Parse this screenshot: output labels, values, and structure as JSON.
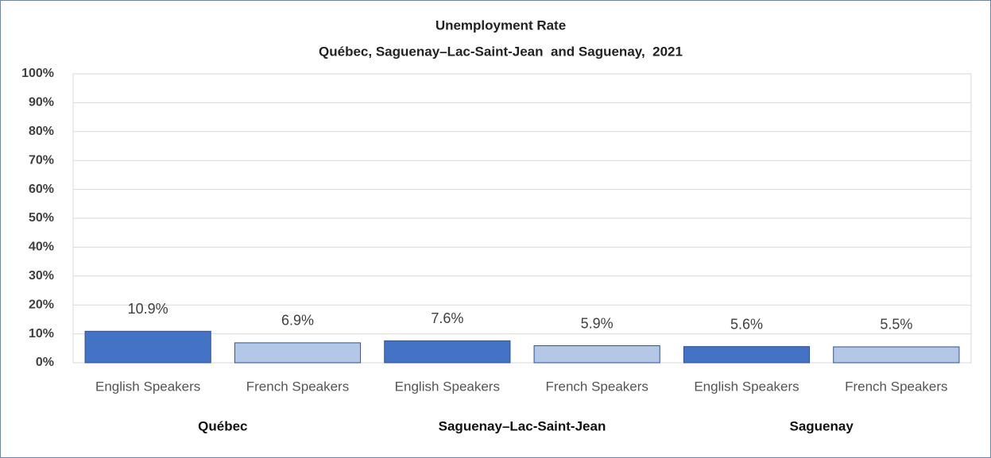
{
  "chart_data": {
    "type": "bar",
    "title": "Unemployment Rate",
    "subtitle": "Québec, Saguenay–Lac-Saint-Jean  and Saguenay,  2021",
    "categories": [
      "English Speakers",
      "French Speakers",
      "English Speakers",
      "French Speakers",
      "English Speakers",
      "French Speakers"
    ],
    "groups": [
      {
        "name": "Québec",
        "size": 2
      },
      {
        "name": "Saguenay–Lac-Saint-Jean",
        "size": 2
      },
      {
        "name": "Saguenay",
        "size": 2
      }
    ],
    "values": [
      10.9,
      6.9,
      7.6,
      5.9,
      5.6,
      5.5
    ],
    "value_labels": [
      "10.9%",
      "6.9%",
      "7.6%",
      "5.9%",
      "5.6%",
      "5.5%"
    ],
    "colors": [
      "#4472c4",
      "#b4c7e7",
      "#4472c4",
      "#b4c7e7",
      "#4472c4",
      "#b4c7e7"
    ],
    "ylim": [
      0,
      100
    ],
    "yticks": [
      {
        "value": 0,
        "label": "0%"
      },
      {
        "value": 10,
        "label": "10%"
      },
      {
        "value": 20,
        "label": "20%"
      },
      {
        "value": 30,
        "label": "30%"
      },
      {
        "value": 40,
        "label": "40%"
      },
      {
        "value": 50,
        "label": "50%"
      },
      {
        "value": 60,
        "label": "60%"
      },
      {
        "value": 70,
        "label": "70%"
      },
      {
        "value": 80,
        "label": "80%"
      },
      {
        "value": 90,
        "label": "90%"
      },
      {
        "value": 100,
        "label": "100%"
      }
    ],
    "grid": true
  }
}
